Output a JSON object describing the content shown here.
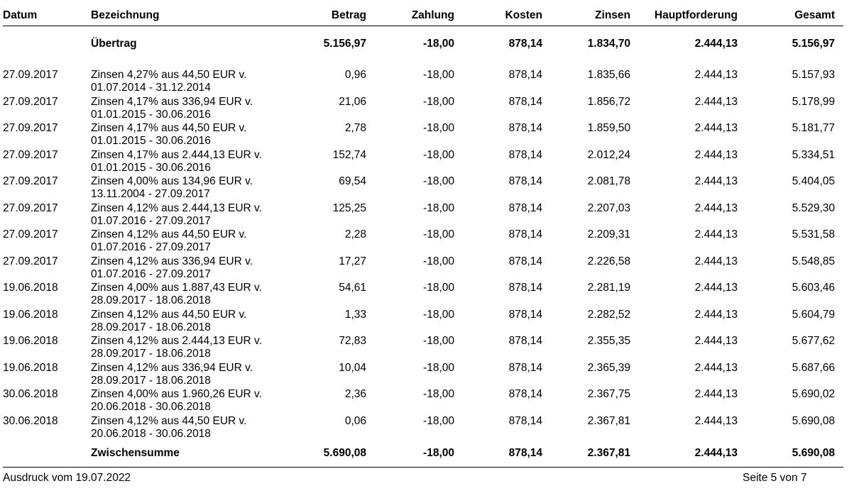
{
  "table": {
    "headers": {
      "datum": "Datum",
      "bezeichnung": "Bezeichnung",
      "betrag": "Betrag",
      "zahlung": "Zahlung",
      "kosten": "Kosten",
      "zinsen": "Zinsen",
      "hauptforderung": "Hauptforderung",
      "gesamt": "Gesamt"
    },
    "carry_over": {
      "label": "Übertrag",
      "betrag": "5.156,97",
      "zahlung": "-18,00",
      "kosten": "878,14",
      "zinsen": "1.834,70",
      "hauptforderung": "2.444,13",
      "gesamt": "5.156,97"
    },
    "rows": [
      {
        "datum": "27.09.2017",
        "line1": "Zinsen 4,27% aus 44,50 EUR v.",
        "line2": "01.07.2014 - 31.12.2014",
        "betrag": "0,96",
        "zahlung": "-18,00",
        "kosten": "878,14",
        "zinsen": "1.835,66",
        "hauptforderung": "2.444,13",
        "gesamt": "5.157,93"
      },
      {
        "datum": "27.09.2017",
        "line1": "Zinsen 4,17% aus 336,94 EUR v.",
        "line2": "01.01.2015 - 30.06.2016",
        "betrag": "21,06",
        "zahlung": "-18,00",
        "kosten": "878,14",
        "zinsen": "1.856,72",
        "hauptforderung": "2.444,13",
        "gesamt": "5.178,99"
      },
      {
        "datum": "27.09.2017",
        "line1": "Zinsen 4,17% aus 44,50 EUR v.",
        "line2": "01.01.2015 - 30.06.2016",
        "betrag": "2,78",
        "zahlung": "-18,00",
        "kosten": "878,14",
        "zinsen": "1.859,50",
        "hauptforderung": "2.444,13",
        "gesamt": "5.181,77"
      },
      {
        "datum": "27.09.2017",
        "line1": "Zinsen 4,17% aus 2.444,13 EUR v.",
        "line2": "01.01.2015 - 30.06.2016",
        "betrag": "152,74",
        "zahlung": "-18,00",
        "kosten": "878,14",
        "zinsen": "2.012,24",
        "hauptforderung": "2.444,13",
        "gesamt": "5.334,51"
      },
      {
        "datum": "27.09.2017",
        "line1": "Zinsen 4,00% aus 134,96 EUR v.",
        "line2": "13.11.2004 - 27.09.2017",
        "betrag": "69,54",
        "zahlung": "-18,00",
        "kosten": "878,14",
        "zinsen": "2.081,78",
        "hauptforderung": "2.444,13",
        "gesamt": "5.404,05"
      },
      {
        "datum": "27.09.2017",
        "line1": "Zinsen 4,12% aus 2.444,13 EUR v.",
        "line2": "01.07.2016 - 27.09.2017",
        "betrag": "125,25",
        "zahlung": "-18,00",
        "kosten": "878,14",
        "zinsen": "2.207,03",
        "hauptforderung": "2.444,13",
        "gesamt": "5.529,30"
      },
      {
        "datum": "27.09.2017",
        "line1": "Zinsen 4,12% aus 44,50 EUR v.",
        "line2": "01.07.2016 - 27.09.2017",
        "betrag": "2,28",
        "zahlung": "-18,00",
        "kosten": "878,14",
        "zinsen": "2.209,31",
        "hauptforderung": "2.444,13",
        "gesamt": "5.531,58"
      },
      {
        "datum": "27.09.2017",
        "line1": "Zinsen 4,12% aus 336,94 EUR v.",
        "line2": "01.07.2016 - 27.09.2017",
        "betrag": "17,27",
        "zahlung": "-18,00",
        "kosten": "878,14",
        "zinsen": "2.226,58",
        "hauptforderung": "2.444,13",
        "gesamt": "5.548,85"
      },
      {
        "datum": "19.06.2018",
        "line1": "Zinsen 4,00% aus 1.887,43 EUR v.",
        "line2": "28.09.2017 - 18.06.2018",
        "betrag": "54,61",
        "zahlung": "-18,00",
        "kosten": "878,14",
        "zinsen": "2.281,19",
        "hauptforderung": "2.444,13",
        "gesamt": "5.603,46"
      },
      {
        "datum": "19.06.2018",
        "line1": "Zinsen 4,12% aus 44,50 EUR v.",
        "line2": "28.09.2017 - 18.06.2018",
        "betrag": "1,33",
        "zahlung": "-18,00",
        "kosten": "878,14",
        "zinsen": "2.282,52",
        "hauptforderung": "2.444,13",
        "gesamt": "5.604,79"
      },
      {
        "datum": "19.06.2018",
        "line1": "Zinsen 4,12% aus 2.444,13 EUR v.",
        "line2": "28.09.2017 - 18.06.2018",
        "betrag": "72,83",
        "zahlung": "-18,00",
        "kosten": "878,14",
        "zinsen": "2.355,35",
        "hauptforderung": "2.444,13",
        "gesamt": "5.677,62"
      },
      {
        "datum": "19.06.2018",
        "line1": "Zinsen 4,12% aus 336,94 EUR v.",
        "line2": "28.09.2017 - 18.06.2018",
        "betrag": "10,04",
        "zahlung": "-18,00",
        "kosten": "878,14",
        "zinsen": "2.365,39",
        "hauptforderung": "2.444,13",
        "gesamt": "5.687,66"
      },
      {
        "datum": "30.06.2018",
        "line1": "Zinsen 4,00% aus 1.960,26 EUR v.",
        "line2": "20.06.2018 - 30.06.2018",
        "betrag": "2,36",
        "zahlung": "-18,00",
        "kosten": "878,14",
        "zinsen": "2.367,75",
        "hauptforderung": "2.444,13",
        "gesamt": "5.690,02"
      },
      {
        "datum": "30.06.2018",
        "line1": "Zinsen 4,12% aus 44,50 EUR v.",
        "line2": "20.06.2018 - 30.06.2018",
        "betrag": "0,06",
        "zahlung": "-18,00",
        "kosten": "878,14",
        "zinsen": "2.367,81",
        "hauptforderung": "2.444,13",
        "gesamt": "5.690,08"
      }
    ],
    "subtotal": {
      "label": "Zwischensumme",
      "betrag": "5.690,08",
      "zahlung": "-18,00",
      "kosten": "878,14",
      "zinsen": "2.367,81",
      "hauptforderung": "2.444,13",
      "gesamt": "5.690,08"
    }
  },
  "footer": {
    "printed": "Ausdruck vom 19.07.2022",
    "page": "Seite 5 von 7"
  }
}
